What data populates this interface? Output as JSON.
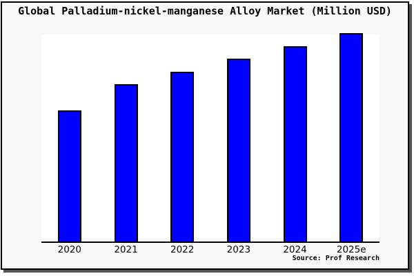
{
  "page": {
    "background_color": "#f8f8f8",
    "frame_border_color": "#000000",
    "frame_shadow_color": "#555555",
    "plot_background_color": "#ffffff"
  },
  "chart_data": {
    "type": "bar",
    "title": "Global Palladium-nickel-manganese Alloy Market (Million USD)",
    "categories": [
      "2020",
      "2021",
      "2022",
      "2023",
      "2024",
      "2025e"
    ],
    "values": [
      62.7,
      75.2,
      81.4,
      87.7,
      93.6,
      100
    ],
    "values_are_relative_estimates": true,
    "xlabel": "",
    "ylabel": "",
    "ylim": [
      0,
      100
    ],
    "y_axis_labels_shown": false,
    "grid": false,
    "legend": false,
    "bar_color": "#0000ff",
    "bar_border_color": "#000000",
    "axis_line_color": "#000000",
    "source_note": "Source: Prof Research"
  }
}
